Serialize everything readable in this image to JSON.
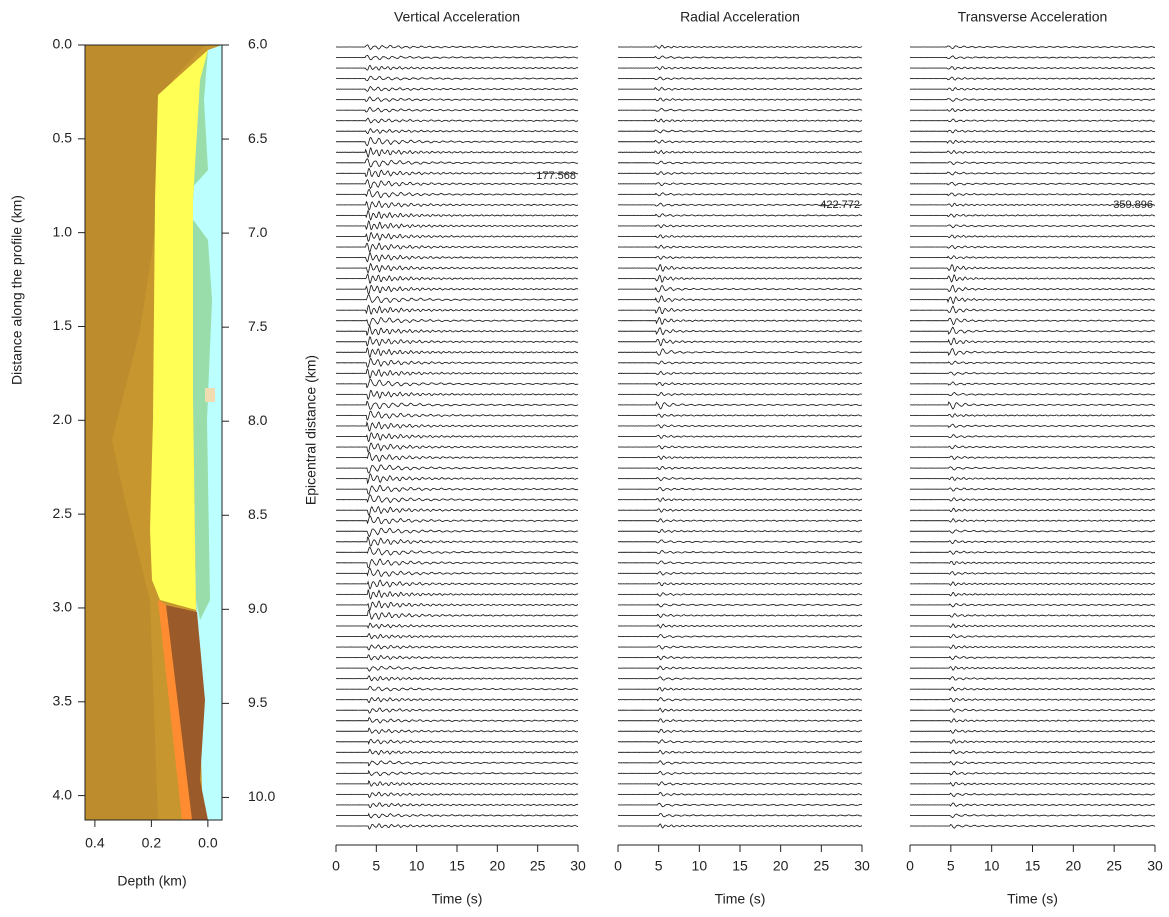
{
  "chart_data": [
    {
      "type": "section",
      "xlabel": "Depth (km)",
      "ylabel": "Distance along the profile (km)",
      "y2label": "Epicentral distance (km)",
      "xlim": [
        0.435,
        -0.05
      ],
      "xticks": [
        0.4,
        0.2,
        {
          "value": 0,
          "label": "0.0"
        }
      ],
      "ylim": [
        0,
        4.13
      ],
      "yticks": [
        {
          "value": 0,
          "label": "0.0"
        },
        0.5,
        {
          "value": 1,
          "label": "1.0"
        },
        1.5,
        {
          "value": 2,
          "label": "2.0"
        },
        2.5,
        {
          "value": 3,
          "label": "3.0"
        },
        3.5,
        {
          "value": 4,
          "label": "4.0"
        }
      ],
      "y2lim": [
        6.0,
        10.12
      ],
      "y2ticks": [
        {
          "value": 6,
          "label": "6.0"
        },
        6.5,
        {
          "value": 7,
          "label": "7.0"
        },
        7.5,
        {
          "value": 8,
          "label": "8.0"
        },
        8.5,
        {
          "value": 9,
          "label": "9.0"
        },
        9.5,
        {
          "value": 10,
          "label": "10.0"
        }
      ]
    },
    {
      "type": "seismogram",
      "title": "Vertical Acceleration",
      "xlabel": "Time (s)",
      "annotation": "177.568",
      "xlim": [
        0,
        30
      ],
      "xticks": [
        0,
        5,
        10,
        15,
        20,
        25,
        30
      ]
    },
    {
      "type": "seismogram",
      "title": "Radial Acceleration",
      "xlabel": "Time (s)",
      "annotation": "422.772",
      "xlim": [
        0,
        30
      ],
      "xticks": [
        0,
        5,
        10,
        15,
        20,
        25,
        30
      ]
    },
    {
      "type": "seismogram",
      "title": "Transverse Acceleration",
      "xlabel": "Time (s)",
      "annotation": "359.896",
      "xlim": [
        0,
        30
      ],
      "xticks": [
        0,
        5,
        10,
        15,
        20,
        25,
        30
      ]
    }
  ]
}
